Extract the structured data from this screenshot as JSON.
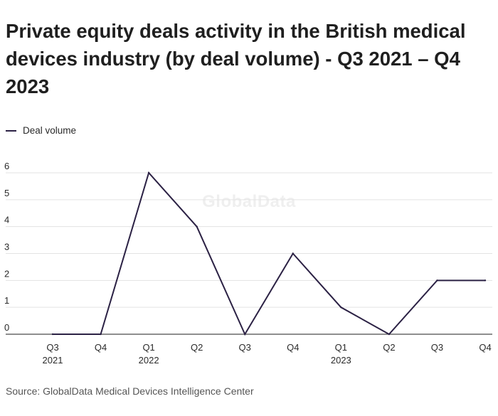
{
  "title": "Private equity deals activity in the British medical devices industry (by deal volume) - Q3 2021 – Q4 2023",
  "source": "Source: GlobalData Medical Devices Intelligence Center",
  "watermark": "GlobalData",
  "colors": {
    "line": "#2b2144",
    "grid": "#e3e3e3",
    "axis": "#4a4a4a",
    "text": "#2a2a2a"
  },
  "chart_data": {
    "type": "line",
    "title": "Private equity deals activity in the British medical devices industry (by deal volume) - Q3 2021 – Q4 2023",
    "xlabel": "",
    "ylabel": "",
    "ylim": [
      0,
      6
    ],
    "yticks": [
      0,
      1,
      2,
      3,
      4,
      5,
      6
    ],
    "categories": [
      [
        "Q3",
        "2021"
      ],
      [
        "Q4",
        ""
      ],
      [
        "Q1",
        "2022"
      ],
      [
        "Q2",
        ""
      ],
      [
        "Q3",
        ""
      ],
      [
        "Q4",
        ""
      ],
      [
        "Q1",
        "2023"
      ],
      [
        "Q2",
        ""
      ],
      [
        "Q3",
        ""
      ],
      [
        "Q4",
        ""
      ]
    ],
    "series": [
      {
        "name": "Deal volume",
        "values": [
          0,
          0,
          6,
          4,
          0,
          3,
          1,
          0,
          2,
          2
        ]
      }
    ],
    "grid": true,
    "legend": "top-left"
  }
}
